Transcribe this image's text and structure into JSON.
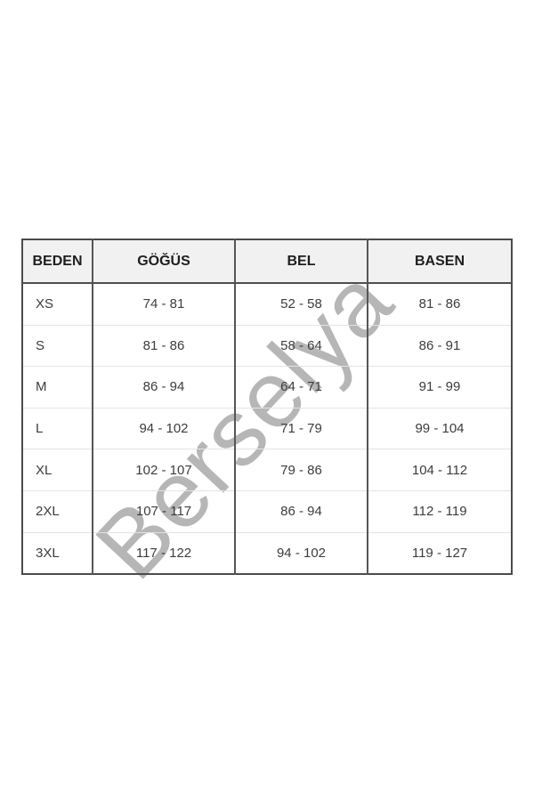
{
  "watermark": {
    "text": "Berselya",
    "color": "#bcbcbc"
  },
  "table": {
    "columns": [
      "BEDEN",
      "GÖĞÜS",
      "BEL",
      "BASEN"
    ],
    "rows": [
      [
        "XS",
        "74 - 81",
        "52 - 58",
        "81 - 86"
      ],
      [
        "S",
        "81 - 86",
        "58 - 64",
        "86 - 91"
      ],
      [
        "M",
        "86 - 94",
        "64 - 71",
        "91 - 99"
      ],
      [
        "L",
        "94 - 102",
        "71 - 79",
        "99 - 104"
      ],
      [
        "XL",
        "102 - 107",
        "79 - 86",
        "104 - 112"
      ],
      [
        "2XL",
        "107 - 117",
        "86 - 94",
        "112 - 119"
      ],
      [
        "3XL",
        "117 - 122",
        "94 - 102",
        "119 - 127"
      ]
    ]
  },
  "colors": {
    "header_bg": "#f1f1f1",
    "border_dark": "#4b4b4b",
    "column_divider": "#565656",
    "row_divider": "#e4e4e4",
    "header_text": "#1e1e1e",
    "cell_text": "#3c3c3c",
    "watermark": "#bcbcbc"
  },
  "chart_data": {
    "type": "table",
    "title": "Size chart (cm)",
    "columns": [
      "BEDEN",
      "GÖĞÜS",
      "BEL",
      "BASEN"
    ],
    "rows": [
      [
        "XS",
        "74 - 81",
        "52 - 58",
        "81 - 86"
      ],
      [
        "S",
        "81 - 86",
        "58 - 64",
        "86 - 91"
      ],
      [
        "M",
        "86 - 94",
        "64 - 71",
        "91 - 99"
      ],
      [
        "L",
        "94 - 102",
        "71 - 79",
        "99 - 104"
      ],
      [
        "XL",
        "102 - 107",
        "79 - 86",
        "104 - 112"
      ],
      [
        "2XL",
        "107 - 117",
        "86 - 94",
        "112 - 119"
      ],
      [
        "3XL",
        "117 - 122",
        "94 - 102",
        "119 - 127"
      ]
    ],
    "notes": "Diagonal watermark text 'Berselya' overlays the table"
  }
}
